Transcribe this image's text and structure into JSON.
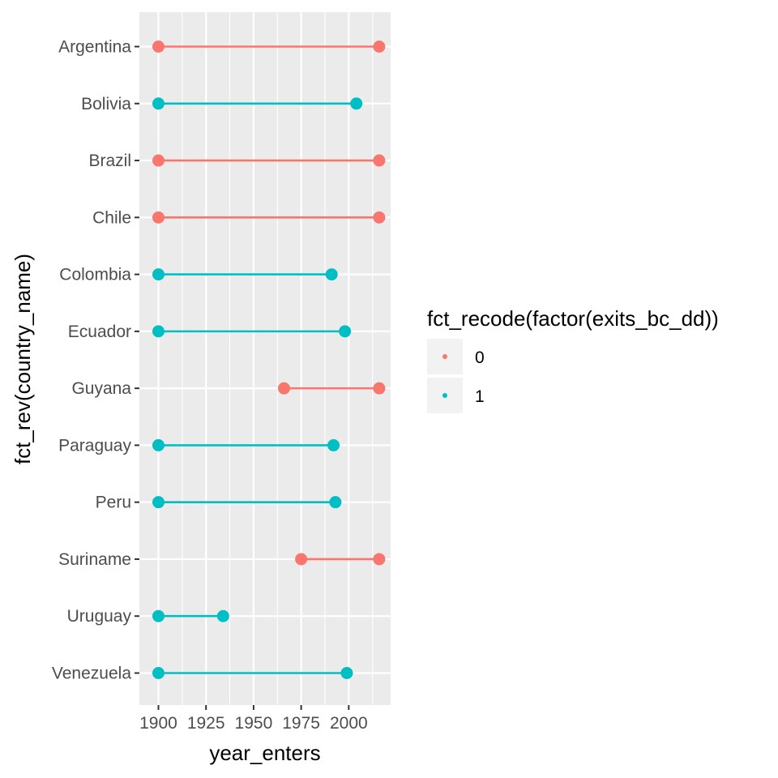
{
  "chart_data": {
    "type": "dumbbell",
    "xlabel": "year_enters",
    "ylabel": "fct_rev(country_name)",
    "xlim": [
      1890,
      2022
    ],
    "x_ticks": [
      1900,
      1925,
      1950,
      1975,
      2000
    ],
    "grid": true,
    "legend": {
      "title": "fct_recode(factor(exits_bc_dd))",
      "placement": "right",
      "entries": [
        {
          "label": "0",
          "color": "#F8766D"
        },
        {
          "label": "1",
          "color": "#00BFC4"
        }
      ]
    },
    "rows": [
      {
        "country": "Argentina",
        "start": 1900,
        "end": 2016,
        "group": "0"
      },
      {
        "country": "Bolivia",
        "start": 1900,
        "end": 2004,
        "group": "1"
      },
      {
        "country": "Brazil",
        "start": 1900,
        "end": 2016,
        "group": "0"
      },
      {
        "country": "Chile",
        "start": 1900,
        "end": 2016,
        "group": "0"
      },
      {
        "country": "Colombia",
        "start": 1900,
        "end": 1991,
        "group": "1"
      },
      {
        "country": "Ecuador",
        "start": 1900,
        "end": 1998,
        "group": "1"
      },
      {
        "country": "Guyana",
        "start": 1966,
        "end": 2016,
        "group": "0"
      },
      {
        "country": "Paraguay",
        "start": 1900,
        "end": 1992,
        "group": "1"
      },
      {
        "country": "Peru",
        "start": 1900,
        "end": 1993,
        "group": "1"
      },
      {
        "country": "Suriname",
        "start": 1975,
        "end": 2016,
        "group": "0"
      },
      {
        "country": "Uruguay",
        "start": 1900,
        "end": 1934,
        "group": "1"
      },
      {
        "country": "Venezuela",
        "start": 1900,
        "end": 1999,
        "group": "1"
      }
    ]
  }
}
